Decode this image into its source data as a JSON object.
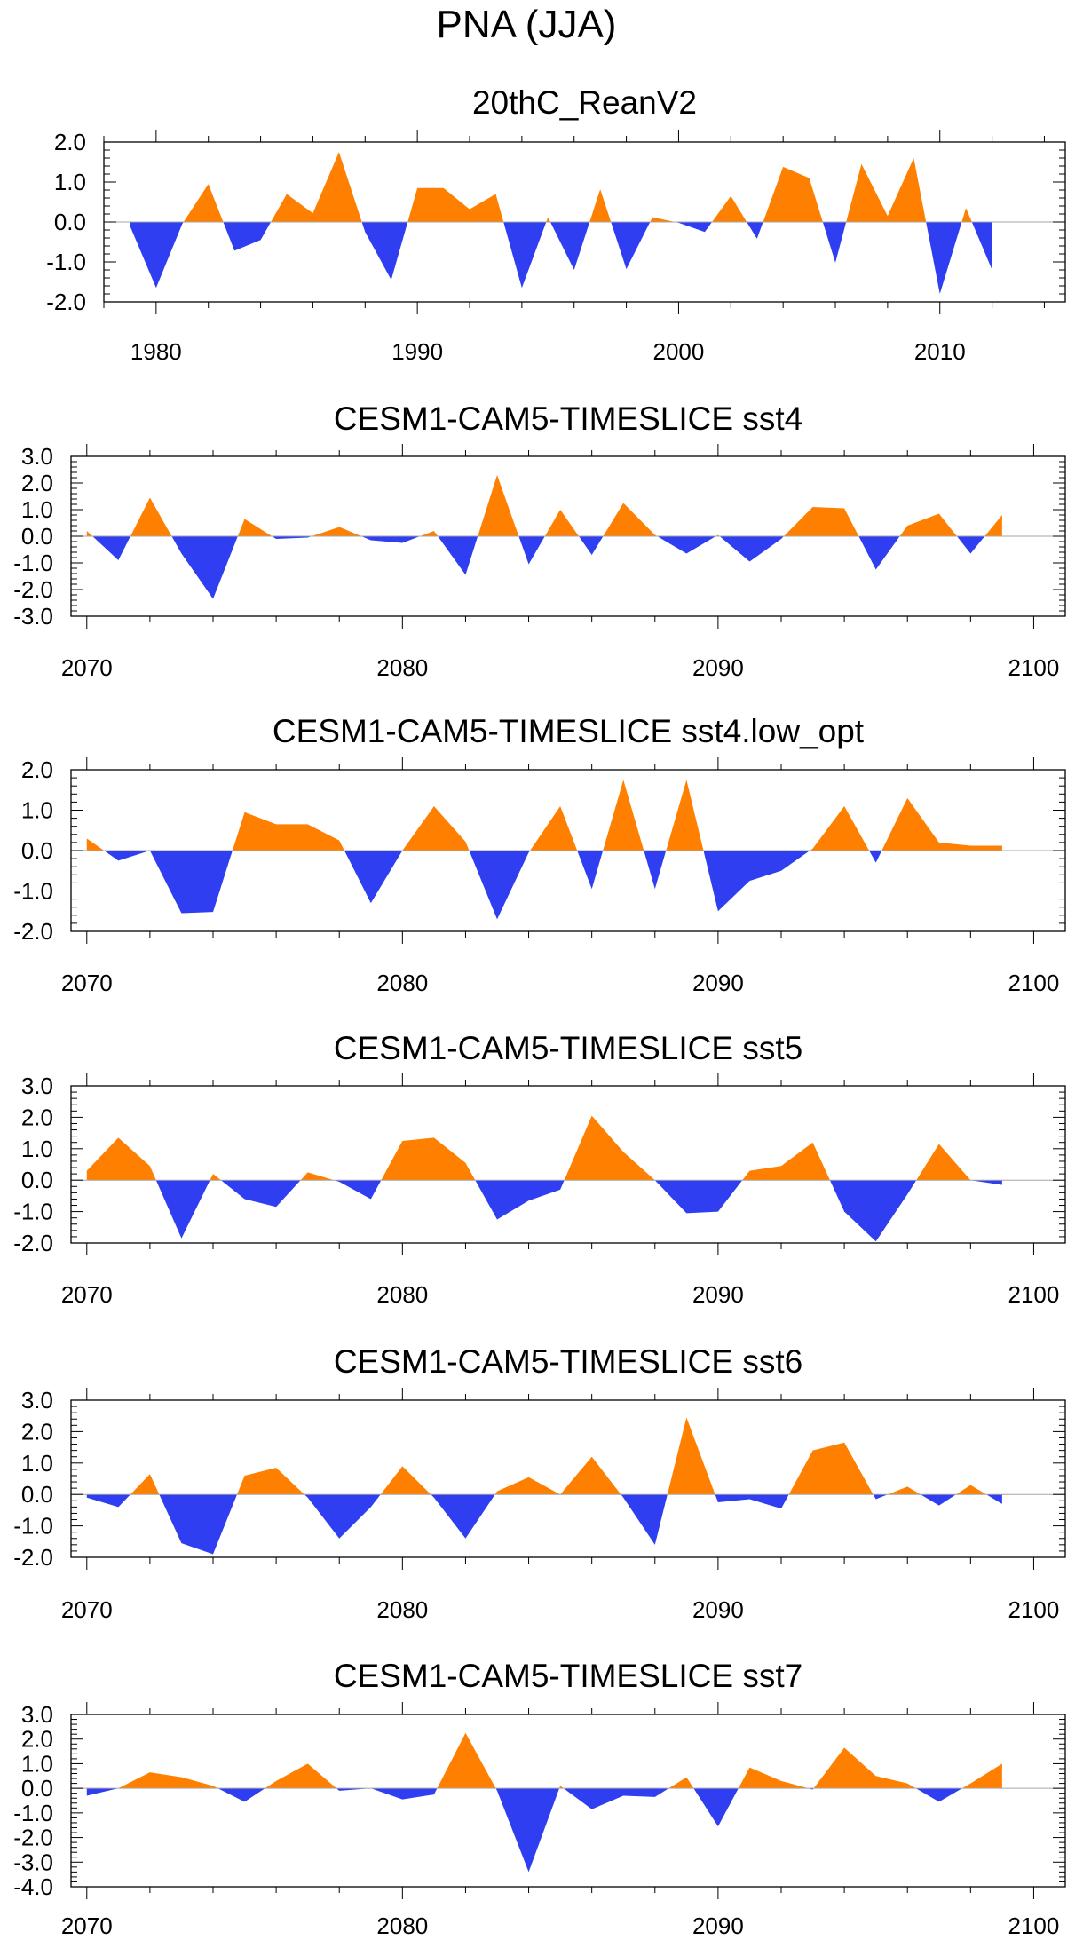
{
  "figure_title": "PNA (JJA)",
  "colors": {
    "positive": "#ff8000",
    "negative": "#2e3ef0",
    "axis": "#000000",
    "zero_line": "#a6a6a6"
  },
  "chart_data": [
    {
      "type": "area",
      "title": "20thC_ReanV2",
      "x_start": 1979,
      "x_end": 2012,
      "xlim": [
        1978,
        2014.8
      ],
      "xticks": [
        1980,
        1990,
        2000,
        2010
      ],
      "ylim": [
        -2.0,
        2.0
      ],
      "yticks": [
        "-2.0",
        "-1.0",
        "0.0",
        "1.0",
        "2.0"
      ],
      "values": [
        -0.1,
        -1.65,
        -0.05,
        0.95,
        -0.72,
        -0.45,
        0.7,
        0.22,
        1.75,
        -0.25,
        -1.45,
        0.85,
        0.85,
        0.32,
        0.7,
        -1.65,
        0.12,
        -1.2,
        0.82,
        -1.18,
        0.12,
        -0.02,
        -0.25,
        0.65,
        -0.42,
        1.38,
        1.1,
        -1.02,
        1.45,
        0.15,
        1.6,
        -1.8,
        0.35,
        -1.2
      ]
    },
    {
      "type": "area",
      "title": "CESM1-CAM5-TIMESLICE sst4",
      "x_start": 2070,
      "x_end": 2099,
      "xlim": [
        2069.5,
        2101
      ],
      "xticks": [
        2070,
        2080,
        2090,
        2100
      ],
      "ylim": [
        -3.0,
        3.0
      ],
      "yticks": [
        "-3.0",
        "-2.0",
        "-1.0",
        "0.0",
        "1.0",
        "2.0",
        "3.0"
      ],
      "values": [
        0.2,
        -0.9,
        1.45,
        -0.65,
        -2.35,
        0.65,
        -0.1,
        -0.05,
        0.35,
        -0.15,
        -0.25,
        0.2,
        -1.45,
        2.3,
        -1.05,
        1.0,
        -0.7,
        1.25,
        0.05,
        -0.65,
        0.05,
        -0.95,
        -0.1,
        1.1,
        1.05,
        -1.25,
        0.4,
        0.85,
        -0.65,
        0.8
      ]
    },
    {
      "type": "area",
      "title": "CESM1-CAM5-TIMESLICE sst4.low_opt",
      "x_start": 2070,
      "x_end": 2099,
      "xlim": [
        2069.5,
        2101
      ],
      "xticks": [
        2070,
        2080,
        2090,
        2100
      ],
      "ylim": [
        -2.0,
        2.0
      ],
      "yticks": [
        "-2.0",
        "-1.0",
        "0.0",
        "1.0",
        "2.0"
      ],
      "values": [
        0.3,
        -0.25,
        0.0,
        -1.55,
        -1.52,
        0.95,
        0.65,
        0.65,
        0.25,
        -1.3,
        0.0,
        1.1,
        0.22,
        -1.7,
        -0.05,
        1.1,
        -0.95,
        1.75,
        -0.95,
        1.75,
        -1.5,
        -0.75,
        -0.5,
        0.05,
        1.1,
        -0.3,
        1.3,
        0.2,
        0.12,
        0.12
      ]
    },
    {
      "type": "area",
      "title": "CESM1-CAM5-TIMESLICE sst5",
      "x_start": 2070,
      "x_end": 2099,
      "xlim": [
        2069.5,
        2101
      ],
      "xticks": [
        2070,
        2080,
        2090,
        2100
      ],
      "ylim": [
        -2.0,
        3.0
      ],
      "yticks": [
        "-2.0",
        "-1.0",
        "0.0",
        "1.0",
        "2.0",
        "3.0"
      ],
      "values": [
        0.3,
        1.35,
        0.45,
        -1.85,
        0.2,
        -0.6,
        -0.85,
        0.25,
        -0.05,
        -0.6,
        1.25,
        1.35,
        0.55,
        -1.25,
        -0.65,
        -0.3,
        2.05,
        0.9,
        0.0,
        -1.05,
        -1.0,
        0.3,
        0.45,
        1.2,
        -1.0,
        -1.95,
        -0.45,
        1.15,
        0.0,
        -0.15
      ]
    },
    {
      "type": "area",
      "title": "CESM1-CAM5-TIMESLICE sst6",
      "x_start": 2070,
      "x_end": 2099,
      "xlim": [
        2069.5,
        2101
      ],
      "xticks": [
        2070,
        2080,
        2090,
        2100
      ],
      "ylim": [
        -2.0,
        3.0
      ],
      "yticks": [
        "-2.0",
        "-1.0",
        "0.0",
        "1.0",
        "2.0",
        "3.0"
      ],
      "values": [
        -0.1,
        -0.4,
        0.65,
        -1.55,
        -1.9,
        0.6,
        0.85,
        -0.1,
        -1.4,
        -0.4,
        0.9,
        -0.1,
        -1.4,
        0.1,
        0.55,
        0.0,
        1.2,
        -0.1,
        -1.6,
        2.45,
        -0.25,
        -0.15,
        -0.45,
        1.4,
        1.65,
        -0.15,
        0.25,
        -0.35,
        0.3,
        -0.3
      ]
    },
    {
      "type": "area",
      "title": "CESM1-CAM5-TIMESLICE sst7",
      "x_start": 2070,
      "x_end": 2099,
      "xlim": [
        2069.5,
        2101
      ],
      "xticks": [
        2070,
        2080,
        2090,
        2100
      ],
      "ylim": [
        -4.0,
        3.0
      ],
      "yticks": [
        "-4.0",
        "-3.0",
        "-2.0",
        "-1.0",
        "0.0",
        "1.0",
        "2.0",
        "3.0"
      ],
      "values": [
        -0.3,
        0.0,
        0.65,
        0.45,
        0.1,
        -0.55,
        0.3,
        1.0,
        -0.1,
        0.0,
        -0.45,
        -0.25,
        2.25,
        -0.1,
        -3.4,
        0.1,
        -0.85,
        -0.3,
        -0.35,
        0.45,
        -1.55,
        0.85,
        0.3,
        -0.05,
        1.65,
        0.5,
        0.2,
        -0.55,
        0.2,
        1.0
      ]
    }
  ]
}
